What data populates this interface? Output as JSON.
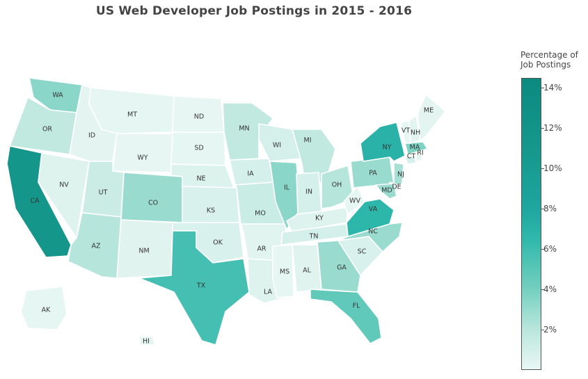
{
  "title": "US Web Developer Job Postings in 2015 - 2016",
  "legend": {
    "title_line1": "Percentage of",
    "title_line2": "Job Postings",
    "ticks": [
      "14%",
      "12%",
      "10%",
      "8%",
      "6%",
      "4%",
      "2%"
    ],
    "tick_values": [
      14,
      12,
      10,
      8,
      6,
      4,
      2
    ],
    "colorscale": [
      "#eaf7f4",
      "#b8e6dc",
      "#72cfbf",
      "#2fb8ab",
      "#1ea6a0",
      "#16988c",
      "#0b8a80"
    ],
    "range": [
      0,
      14.5
    ]
  },
  "chart_data": {
    "type": "choropleth",
    "scope": "usa",
    "title": "US Web Developer Job Postings in 2015 - 2016",
    "colorbar_title": "Percentage of Job Postings",
    "states": [
      {
        "abbr": "WA",
        "value": 4.0
      },
      {
        "abbr": "OR",
        "value": 2.0
      },
      {
        "abbr": "CA",
        "value": 12.5
      },
      {
        "abbr": "NV",
        "value": 0.6
      },
      {
        "abbr": "ID",
        "value": 0.3
      },
      {
        "abbr": "MT",
        "value": 0.2
      },
      {
        "abbr": "WY",
        "value": 0.1
      },
      {
        "abbr": "UT",
        "value": 1.5
      },
      {
        "abbr": "AZ",
        "value": 2.5
      },
      {
        "abbr": "NM",
        "value": 0.5
      },
      {
        "abbr": "CO",
        "value": 3.5
      },
      {
        "abbr": "ND",
        "value": 0.1
      },
      {
        "abbr": "SD",
        "value": 0.2
      },
      {
        "abbr": "NE",
        "value": 0.7
      },
      {
        "abbr": "KS",
        "value": 0.8
      },
      {
        "abbr": "OK",
        "value": 0.8
      },
      {
        "abbr": "TX",
        "value": 6.5
      },
      {
        "abbr": "MN",
        "value": 2.0
      },
      {
        "abbr": "IA",
        "value": 1.0
      },
      {
        "abbr": "MO",
        "value": 1.6
      },
      {
        "abbr": "AR",
        "value": 0.4
      },
      {
        "abbr": "LA",
        "value": 0.6
      },
      {
        "abbr": "WI",
        "value": 1.0
      },
      {
        "abbr": "IL",
        "value": 4.0
      },
      {
        "abbr": "MI",
        "value": 2.0
      },
      {
        "abbr": "IN",
        "value": 1.0
      },
      {
        "abbr": "OH",
        "value": 2.5
      },
      {
        "abbr": "KY",
        "value": 0.6
      },
      {
        "abbr": "TN",
        "value": 1.0
      },
      {
        "abbr": "MS",
        "value": 0.2
      },
      {
        "abbr": "AL",
        "value": 0.5
      },
      {
        "abbr": "GA",
        "value": 3.5
      },
      {
        "abbr": "FL",
        "value": 5.5
      },
      {
        "abbr": "SC",
        "value": 0.8
      },
      {
        "abbr": "NC",
        "value": 3.5
      },
      {
        "abbr": "VA",
        "value": 7.5
      },
      {
        "abbr": "WV",
        "value": 0.2
      },
      {
        "abbr": "PA",
        "value": 3.5
      },
      {
        "abbr": "NY",
        "value": 8.0
      },
      {
        "abbr": "NJ",
        "value": 3.0
      },
      {
        "abbr": "DE",
        "value": 0.4
      },
      {
        "abbr": "MD",
        "value": 3.5
      },
      {
        "abbr": "CT",
        "value": 1.0
      },
      {
        "abbr": "RI",
        "value": 0.4
      },
      {
        "abbr": "MA",
        "value": 4.5
      },
      {
        "abbr": "VT",
        "value": 0.2
      },
      {
        "abbr": "NH",
        "value": 0.4
      },
      {
        "abbr": "ME",
        "value": 0.3
      },
      {
        "abbr": "AK",
        "value": 0.2
      },
      {
        "abbr": "HI",
        "value": 0.3
      }
    ]
  }
}
